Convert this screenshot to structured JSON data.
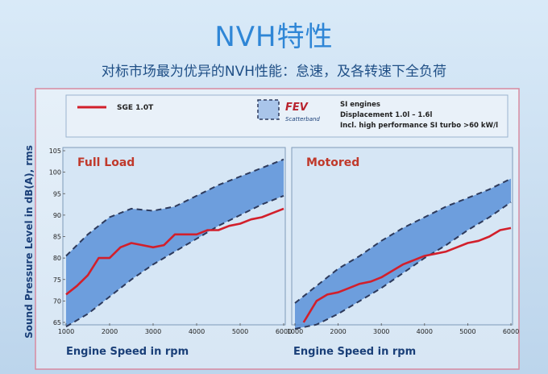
{
  "slide": {
    "title": "NVH特性",
    "subtitle": "对标市场最为优异的NVH性能：怠速，及各转速下全负荷"
  },
  "legend": {
    "series_label": "SGE 1.0T",
    "fev_logo": "FEV",
    "scatter_label": "Scatterband",
    "info_lines": [
      "SI engines",
      "Displacement 1.0l – 1.6l",
      "Incl. high performance SI turbo >60 kW/l"
    ]
  },
  "colors": {
    "series": "#d21f2b",
    "band_fill": "#4a86d4",
    "band_edge": "#2d3a5c",
    "panel_title": "#c0392b",
    "axis_title": "#1a3f78"
  },
  "chart_data": [
    {
      "type": "area",
      "title": "Full Load",
      "xlabel": "Engine Speed in rpm",
      "ylabel": "Sound Pressure Level in dB(A), rms",
      "xlim": [
        1000,
        6000
      ],
      "ylim": [
        65,
        105
      ],
      "xticks": [
        "1000",
        "2000",
        "3000",
        "4000",
        "5000",
        "6000"
      ],
      "yticks": [
        "65",
        "70",
        "75",
        "80",
        "85",
        "90",
        "95",
        "100",
        "105"
      ],
      "grid": false,
      "scatter_band": {
        "x": [
          1000,
          1500,
          2000,
          2500,
          3000,
          3500,
          4000,
          4500,
          5000,
          5500,
          6000
        ],
        "upper": [
          80.5,
          85.5,
          89.5,
          91.5,
          91.0,
          92.0,
          94.5,
          97.0,
          99.0,
          101.0,
          103.0
        ],
        "lower": [
          64.0,
          67.0,
          71.0,
          75.0,
          78.5,
          81.5,
          84.5,
          87.5,
          90.0,
          92.5,
          94.5
        ]
      },
      "series": [
        {
          "name": "SGE 1.0T",
          "x": [
            1000,
            1250,
            1500,
            1750,
            2000,
            2250,
            2500,
            2750,
            3000,
            3250,
            3500,
            3750,
            4000,
            4250,
            4500,
            4750,
            5000,
            5250,
            5500,
            5750,
            6000
          ],
          "values": [
            71.5,
            73.5,
            76.0,
            80.0,
            80.0,
            82.5,
            83.5,
            83.0,
            82.5,
            83.0,
            85.5,
            85.5,
            85.5,
            86.5,
            86.5,
            87.5,
            88.0,
            89.0,
            89.5,
            90.5,
            91.5
          ]
        }
      ]
    },
    {
      "type": "area",
      "title": "Motored",
      "xlabel": "Engine Speed in rpm",
      "xlim": [
        1000,
        6000
      ],
      "ylim": [
        65,
        105
      ],
      "xticks": [
        "1000",
        "2000",
        "3000",
        "4000",
        "5000",
        "6000"
      ],
      "grid": false,
      "scatter_band": {
        "x": [
          1000,
          1500,
          2000,
          2500,
          3000,
          3500,
          4000,
          4500,
          5000,
          5500,
          6000
        ],
        "upper": [
          69.5,
          73.5,
          77.5,
          80.5,
          84.0,
          87.0,
          89.5,
          92.0,
          94.0,
          96.0,
          98.5
        ],
        "lower": [
          62.0,
          64.5,
          67.0,
          70.0,
          73.0,
          76.5,
          80.0,
          83.0,
          86.5,
          89.5,
          93.0
        ]
      },
      "series": [
        {
          "name": "SGE 1.0T",
          "x": [
            1200,
            1500,
            1750,
            2000,
            2250,
            2500,
            2750,
            3000,
            3250,
            3500,
            3750,
            4000,
            4250,
            4500,
            4750,
            5000,
            5250,
            5500,
            5750,
            6000
          ],
          "values": [
            65.0,
            70.0,
            71.5,
            72.0,
            73.0,
            74.0,
            74.5,
            75.5,
            77.0,
            78.5,
            79.5,
            80.5,
            81.0,
            81.5,
            82.5,
            83.5,
            84.0,
            85.0,
            86.5,
            87.0
          ]
        }
      ]
    }
  ]
}
